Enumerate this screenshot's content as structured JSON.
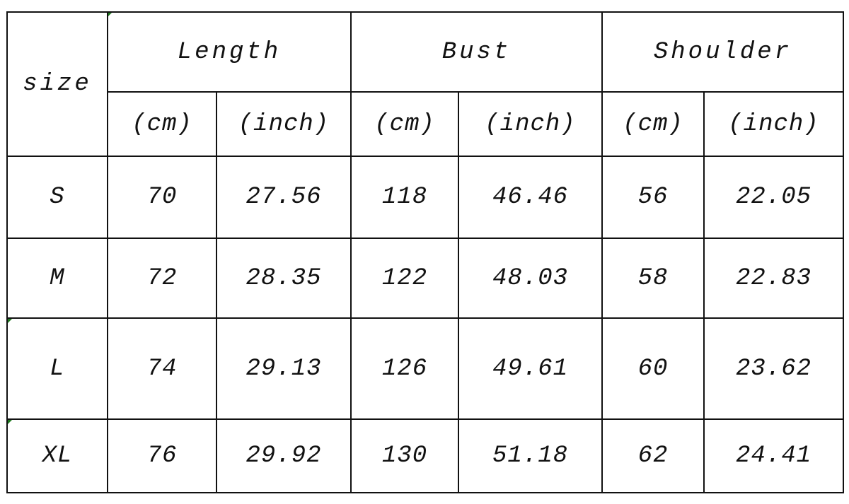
{
  "table": {
    "size_header": "size",
    "groups": [
      "Length",
      "Bust",
      "Shoulder"
    ],
    "units": [
      "(cm)",
      "(inch)",
      "(cm)",
      "(inch)",
      "(cm)",
      "(inch)"
    ],
    "rows": [
      {
        "size": "S",
        "values": [
          "70",
          "27.56",
          "118",
          "46.46",
          "56",
          "22.05"
        ]
      },
      {
        "size": "M",
        "values": [
          "72",
          "28.35",
          "122",
          "48.03",
          "58",
          "22.83"
        ]
      },
      {
        "size": "L",
        "values": [
          "74",
          "29.13",
          "126",
          "49.61",
          "60",
          "23.62"
        ]
      },
      {
        "size": "XL",
        "values": [
          "76",
          "29.92",
          "130",
          "51.18",
          "62",
          "24.41"
        ]
      }
    ]
  },
  "colors": {
    "border": "#111111",
    "corner_mark": "#1f7a1f"
  }
}
